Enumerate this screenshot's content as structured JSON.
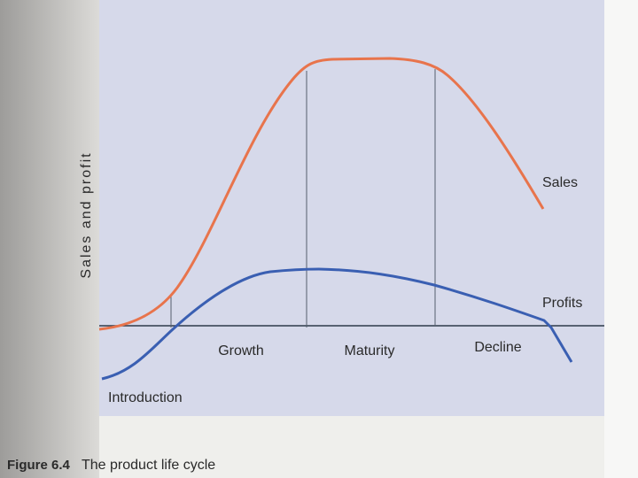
{
  "axis_label": "Sales and profit",
  "curves": {
    "sales": "Sales",
    "profits": "Profits"
  },
  "stages": [
    "Introduction",
    "Growth",
    "Maturity",
    "Decline"
  ],
  "caption": {
    "figure": "Figure 6.4",
    "title": "The product life cycle"
  }
}
